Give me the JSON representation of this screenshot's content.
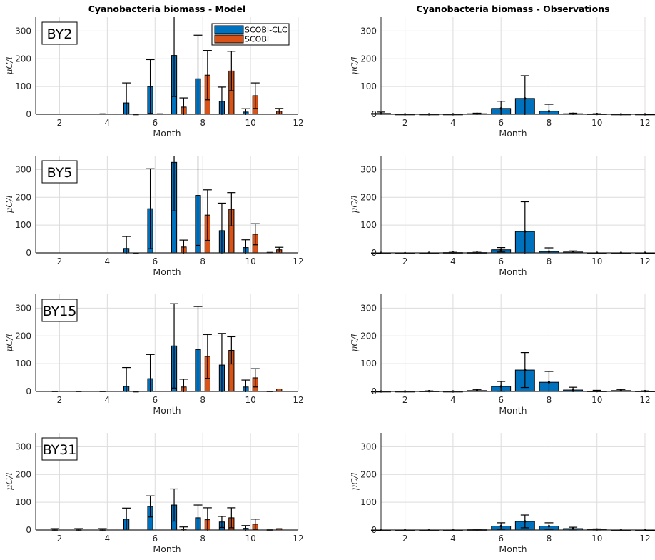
{
  "colors": {
    "scobi_clc": "#0072BD",
    "scobi": "#D95319",
    "grid": "#dcdcdc",
    "axis": "#262626"
  },
  "chart_data": [
    {
      "type": "bar",
      "title": "Cyanobacteria biomass - Model",
      "station": "BY2",
      "xlabel": "Month",
      "ylabel": "μC/l",
      "xlim": [
        1,
        12
      ],
      "ylim": [
        0,
        350
      ],
      "xticks": [
        2,
        4,
        6,
        8,
        10,
        12
      ],
      "yticks": [
        0,
        100,
        200,
        300
      ],
      "grid": true,
      "legend": {
        "placement": "top-right",
        "entries": [
          "SCOBI-CLC",
          "SCOBI"
        ]
      },
      "months": [
        1,
        2,
        3,
        4,
        5,
        6,
        7,
        8,
        9,
        10,
        11,
        12
      ],
      "series": [
        {
          "name": "SCOBI-CLC",
          "values": [
            0,
            0,
            0,
            2,
            41,
            100,
            212,
            128,
            47,
            8,
            0,
            0
          ],
          "err": [
            0,
            0,
            0,
            0,
            72,
            97,
            148,
            157,
            51,
            12,
            0,
            0
          ]
        },
        {
          "name": "SCOBI",
          "values": [
            0,
            0,
            0,
            0,
            -2,
            2,
            26,
            141,
            156,
            67,
            11,
            0
          ],
          "err": [
            0,
            0,
            0,
            0,
            0,
            0,
            33,
            89,
            71,
            46,
            10,
            0
          ]
        }
      ]
    },
    {
      "type": "bar",
      "title": "Cyanobacteria biomass - Observations",
      "xlabel": "Month",
      "ylabel": "μC/l",
      "xlim": [
        1,
        12
      ],
      "ylim": [
        0,
        350
      ],
      "xticks": [
        2,
        4,
        6,
        8,
        10,
        12
      ],
      "yticks": [
        0,
        100,
        200,
        300
      ],
      "grid": true,
      "months": [
        1,
        2,
        3,
        4,
        5,
        6,
        7,
        8,
        9,
        10,
        11,
        12
      ],
      "series": [
        {
          "name": "Observations",
          "values": [
            3,
            0,
            0,
            0,
            2,
            21,
            57,
            11,
            2,
            1,
            0,
            0
          ],
          "err": [
            5,
            0,
            0,
            0,
            2,
            26,
            82,
            25,
            2,
            1,
            0,
            0
          ]
        }
      ]
    },
    {
      "type": "bar",
      "station": "BY5",
      "xlabel": "Month",
      "ylabel": "μC/l",
      "xlim": [
        1,
        12
      ],
      "ylim": [
        0,
        350
      ],
      "xticks": [
        2,
        4,
        6,
        8,
        10,
        12
      ],
      "yticks": [
        0,
        100,
        200,
        300
      ],
      "grid": true,
      "months": [
        1,
        2,
        3,
        4,
        5,
        6,
        7,
        8,
        9,
        10,
        11,
        12
      ],
      "series": [
        {
          "name": "SCOBI-CLC",
          "values": [
            0,
            0,
            0,
            0,
            16,
            159,
            326,
            207,
            80,
            19,
            2,
            0
          ],
          "err": [
            0,
            0,
            0,
            0,
            43,
            144,
            175,
            180,
            99,
            28,
            0,
            0
          ]
        },
        {
          "name": "SCOBI",
          "values": [
            0,
            0,
            0,
            0,
            -2,
            0,
            21,
            136,
            157,
            67,
            11,
            0
          ],
          "err": [
            0,
            0,
            0,
            0,
            0,
            0,
            25,
            91,
            60,
            38,
            9,
            0
          ]
        }
      ]
    },
    {
      "type": "bar",
      "xlabel": "Month",
      "ylabel": "μC/l",
      "xlim": [
        1,
        12
      ],
      "ylim": [
        0,
        350
      ],
      "xticks": [
        2,
        4,
        6,
        8,
        10,
        12
      ],
      "yticks": [
        0,
        100,
        200,
        300
      ],
      "grid": true,
      "months": [
        1,
        2,
        3,
        4,
        5,
        6,
        7,
        8,
        9,
        10,
        11,
        12
      ],
      "series": [
        {
          "name": "Observations",
          "values": [
            0,
            -1,
            0,
            1,
            1,
            11,
            77,
            5,
            3,
            0,
            0,
            0
          ],
          "err": [
            0,
            0,
            0,
            1,
            1,
            8,
            107,
            13,
            4,
            0,
            0,
            0
          ]
        }
      ]
    },
    {
      "type": "bar",
      "station": "BY15",
      "xlabel": "Month",
      "ylabel": "μC/l",
      "xlim": [
        1,
        12
      ],
      "ylim": [
        0,
        350
      ],
      "xticks": [
        2,
        4,
        6,
        8,
        10,
        12
      ],
      "yticks": [
        0,
        100,
        200,
        300
      ],
      "grid": true,
      "months": [
        1,
        2,
        3,
        4,
        5,
        6,
        7,
        8,
        9,
        10,
        11,
        12
      ],
      "series": [
        {
          "name": "SCOBI-CLC",
          "values": [
            0,
            1,
            1,
            1,
            18,
            46,
            164,
            151,
            95,
            16,
            1,
            0
          ],
          "err": [
            0,
            0,
            0,
            0,
            68,
            87,
            152,
            155,
            114,
            25,
            0,
            0
          ]
        },
        {
          "name": "SCOBI",
          "values": [
            0,
            0,
            0,
            0,
            -2,
            0,
            16,
            126,
            148,
            49,
            9,
            0
          ],
          "err": [
            0,
            0,
            0,
            0,
            0,
            0,
            28,
            79,
            49,
            33,
            0,
            0
          ]
        }
      ]
    },
    {
      "type": "bar",
      "xlabel": "Month",
      "ylabel": "μC/l",
      "xlim": [
        1,
        12
      ],
      "ylim": [
        0,
        350
      ],
      "xticks": [
        2,
        4,
        6,
        8,
        10,
        12
      ],
      "yticks": [
        0,
        100,
        200,
        300
      ],
      "grid": true,
      "months": [
        1,
        2,
        3,
        4,
        5,
        6,
        7,
        8,
        9,
        10,
        11,
        12
      ],
      "series": [
        {
          "name": "Observations",
          "values": [
            0,
            0,
            1,
            0,
            3,
            18,
            77,
            33,
            5,
            1,
            3,
            1
          ],
          "err": [
            0,
            0,
            1,
            0,
            4,
            18,
            63,
            39,
            10,
            3,
            4,
            1
          ]
        }
      ]
    },
    {
      "type": "bar",
      "station": "BY31",
      "xlabel": "Month",
      "ylabel": "μC/l",
      "xlim": [
        1,
        12
      ],
      "ylim": [
        0,
        350
      ],
      "xticks": [
        2,
        4,
        6,
        8,
        10,
        12
      ],
      "yticks": [
        0,
        100,
        200,
        300
      ],
      "grid": true,
      "months": [
        1,
        2,
        3,
        4,
        5,
        6,
        7,
        8,
        9,
        10,
        11,
        12
      ],
      "series": [
        {
          "name": "SCOBI-CLC",
          "values": [
            0,
            1,
            1,
            1,
            39,
            85,
            90,
            44,
            29,
            6,
            1,
            0
          ],
          "err": [
            0,
            4,
            4,
            4,
            40,
            38,
            58,
            46,
            20,
            10,
            0,
            0
          ]
        },
        {
          "name": "SCOBI",
          "values": [
            0,
            0,
            0,
            0,
            0,
            0,
            3,
            37,
            44,
            21,
            5,
            0
          ],
          "err": [
            0,
            0,
            0,
            0,
            0,
            0,
            8,
            43,
            36,
            18,
            0,
            0
          ]
        }
      ]
    },
    {
      "type": "bar",
      "xlabel": "Month",
      "ylabel": "μC/l",
      "xlim": [
        1,
        12
      ],
      "ylim": [
        0,
        350
      ],
      "xticks": [
        2,
        4,
        6,
        8,
        10,
        12
      ],
      "yticks": [
        0,
        100,
        200,
        300
      ],
      "grid": true,
      "months": [
        1,
        2,
        3,
        4,
        5,
        6,
        7,
        8,
        9,
        10,
        11,
        12
      ],
      "series": [
        {
          "name": "Observations",
          "values": [
            0,
            0,
            0,
            0,
            1,
            14,
            31,
            14,
            5,
            2,
            0,
            0
          ],
          "err": [
            0,
            0,
            0,
            0,
            1,
            12,
            23,
            12,
            5,
            2,
            0,
            0
          ]
        }
      ]
    }
  ]
}
